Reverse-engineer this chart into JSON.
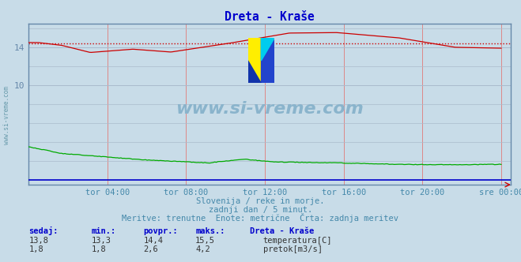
{
  "title": "Dreta - Kraše",
  "title_color": "#0000cc",
  "bg_color": "#c8dce8",
  "plot_bg_color": "#c8dce8",
  "fig_bg_color": "#c8dce8",
  "xlabel_color": "#4488aa",
  "grid_color_v": "#dd8888",
  "grid_color_h": "#aabbcc",
  "axis_color": "#6688aa",
  "spine_color": "#6688aa",
  "x_tick_labels": [
    "tor 04:00",
    "tor 08:00",
    "tor 12:00",
    "tor 16:00",
    "tor 20:00",
    "sre 00:00"
  ],
  "x_tick_positions": [
    0.1667,
    0.3333,
    0.5,
    0.6667,
    0.8333,
    1.0
  ],
  "y_ticks": [
    10,
    14
  ],
  "ylim": [
    -0.5,
    16.5
  ],
  "xlim": [
    0,
    1.02
  ],
  "temp_avg": 14.4,
  "temp_color": "#cc0000",
  "flow_color": "#00aa00",
  "watermark_text": "www.si-vreme.com",
  "watermark_color": "#8ab4cc",
  "subtitle1": "Slovenija / reke in morje.",
  "subtitle2": "zadnji dan / 5 minut.",
  "subtitle3": "Meritve: trenutne  Enote: metrične  Črta: zadnja meritev",
  "subtitle_color": "#4488aa",
  "table_header": [
    "sedaj:",
    "min.:",
    "povpr.:",
    "maks.:"
  ],
  "table_header_color": "#0000cc",
  "table_temp": [
    "13,8",
    "13,3",
    "14,4",
    "15,5"
  ],
  "table_flow": [
    "1,8",
    "1,8",
    "2,6",
    "4,2"
  ],
  "station_label": "Dreta - Kraše",
  "legend_temp": "temperatura[C]",
  "legend_flow": "pretok[m3/s]",
  "temp_color_box": "#cc0000",
  "flow_color_box": "#008800"
}
